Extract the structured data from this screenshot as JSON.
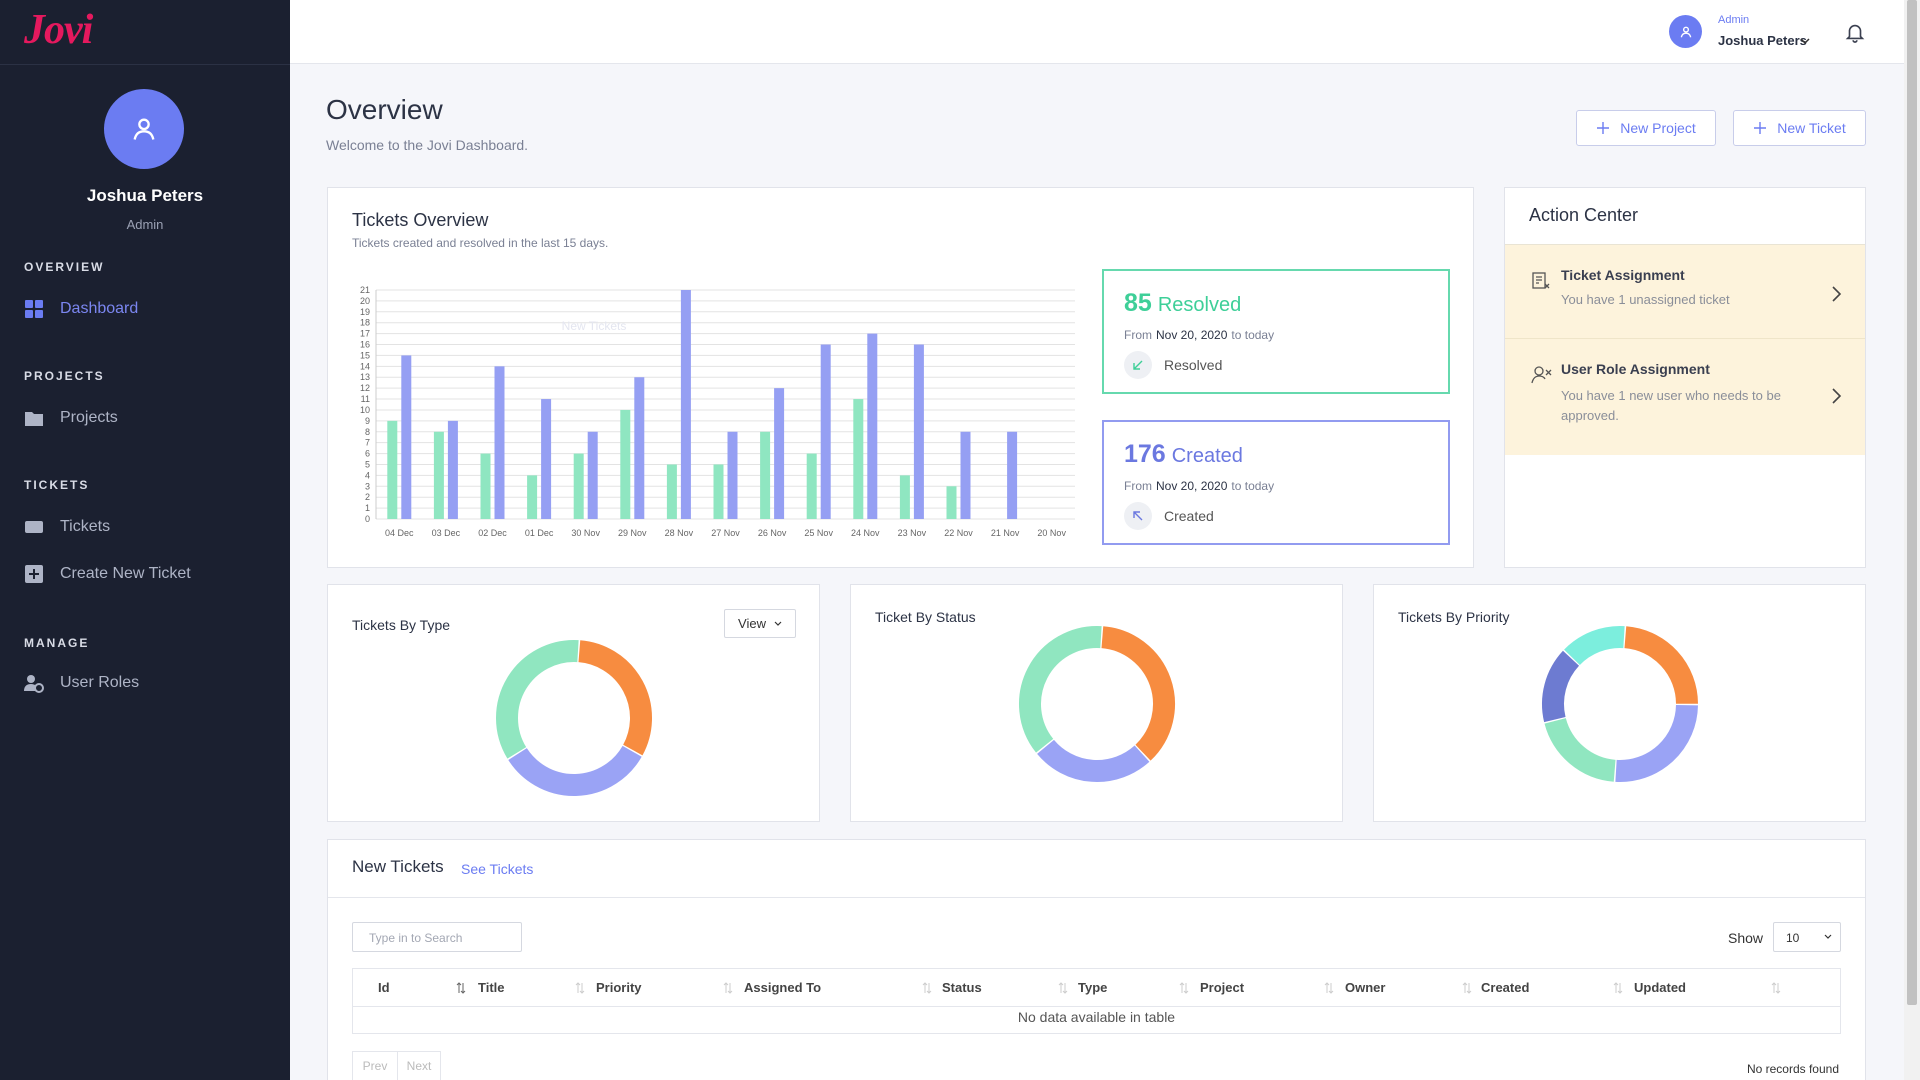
{
  "sidebar": {
    "logo": "Jovi",
    "user": {
      "name": "Joshua Peters",
      "role": "Admin"
    },
    "sections": [
      {
        "title": "OVERVIEW",
        "items": [
          "Dashboard"
        ]
      },
      {
        "title": "PROJECTS",
        "items": [
          "Projects"
        ]
      },
      {
        "title": "TICKETS",
        "items": [
          "Tickets",
          "Create New Ticket"
        ]
      },
      {
        "title": "MANAGE",
        "items": [
          "User Roles"
        ]
      }
    ]
  },
  "topbar": {
    "role": "Admin",
    "name": "Joshua Peters"
  },
  "header": {
    "title": "Overview",
    "subtitle": "Welcome to the Jovi Dashboard.",
    "buttons": [
      "New Project",
      "New Ticket"
    ]
  },
  "tickets_overview": {
    "title": "Tickets Overview",
    "subtitle": "Tickets created and resolved in the last 15 days.",
    "chart_data": {
      "type": "bar",
      "categories": [
        "04 Dec",
        "03 Dec",
        "02 Dec",
        "01 Dec",
        "30 Nov",
        "29 Nov",
        "28 Nov",
        "27 Nov",
        "26 Nov",
        "25 Nov",
        "24 Nov",
        "23 Nov",
        "22 Nov",
        "21 Nov",
        "20 Nov"
      ],
      "series": [
        {
          "color": "#8fe6c1",
          "values": [
            9,
            8,
            6,
            4,
            6,
            10,
            5,
            5,
            8,
            6,
            11,
            4,
            3,
            0,
            0
          ]
        },
        {
          "name": "New Tickets",
          "color": "#959ff3",
          "values": [
            15,
            9,
            14,
            11,
            8,
            13,
            21,
            8,
            12,
            16,
            17,
            16,
            8,
            8,
            0
          ]
        }
      ],
      "ylim": [
        0,
        21
      ],
      "yticks": [
        0,
        1,
        2,
        3,
        4,
        5,
        6,
        7,
        8,
        9,
        10,
        11,
        12,
        13,
        14,
        15,
        16,
        17,
        18,
        19,
        20,
        21
      ],
      "grid": true
    },
    "stats": [
      {
        "value": 85,
        "label": "Resolved",
        "from": "From",
        "date": "Nov 20, 2020",
        "until": "to today",
        "footer": "Resolved",
        "color": "#3ecf98",
        "border": "#66d9ae"
      },
      {
        "value": 176,
        "label": "Created",
        "from": "From",
        "date": "Nov 20, 2020",
        "until": "to today",
        "footer": "Created",
        "color": "#6b78e0",
        "border": "#929bf0"
      }
    ]
  },
  "action_center": {
    "title": "Action Center",
    "items": [
      {
        "title": "Ticket Assignment",
        "text": "You have 1 unassigned ticket"
      },
      {
        "title": "User Role Assignment",
        "text": "You have 1 new user who needs to be approved."
      }
    ]
  },
  "donuts": [
    {
      "title": "Tickets By Type",
      "button": "View",
      "chart_data": {
        "type": "donut",
        "values": [
          32,
          33,
          35
        ],
        "colors": [
          "#f78c40",
          "#9aa3f5",
          "#90e6c0"
        ]
      }
    },
    {
      "title": "Ticket By Status",
      "chart_data": {
        "type": "donut",
        "values": [
          37,
          26,
          37
        ],
        "colors": [
          "#f78c40",
          "#9aa3f5",
          "#90e6c0"
        ]
      }
    },
    {
      "title": "Tickets By Priority",
      "chart_data": {
        "type": "donut",
        "values": [
          24,
          26,
          20,
          16,
          14
        ],
        "colors": [
          "#f78c40",
          "#9aa3f5",
          "#90e6c0",
          "#6d7bd1",
          "#7ceedd"
        ]
      }
    }
  ],
  "new_tickets": {
    "title": "New Tickets",
    "link": "See Tickets",
    "search_placeholder": "Type in to Search",
    "show_label": "Show",
    "page_size": 10,
    "columns": [
      "Id",
      "Title",
      "Priority",
      "Assigned To",
      "Status",
      "Type",
      "Project",
      "Owner",
      "Created",
      "Updated"
    ],
    "empty": "No data available in table",
    "info": "No records found",
    "pager": [
      "Prev",
      "Next"
    ]
  }
}
